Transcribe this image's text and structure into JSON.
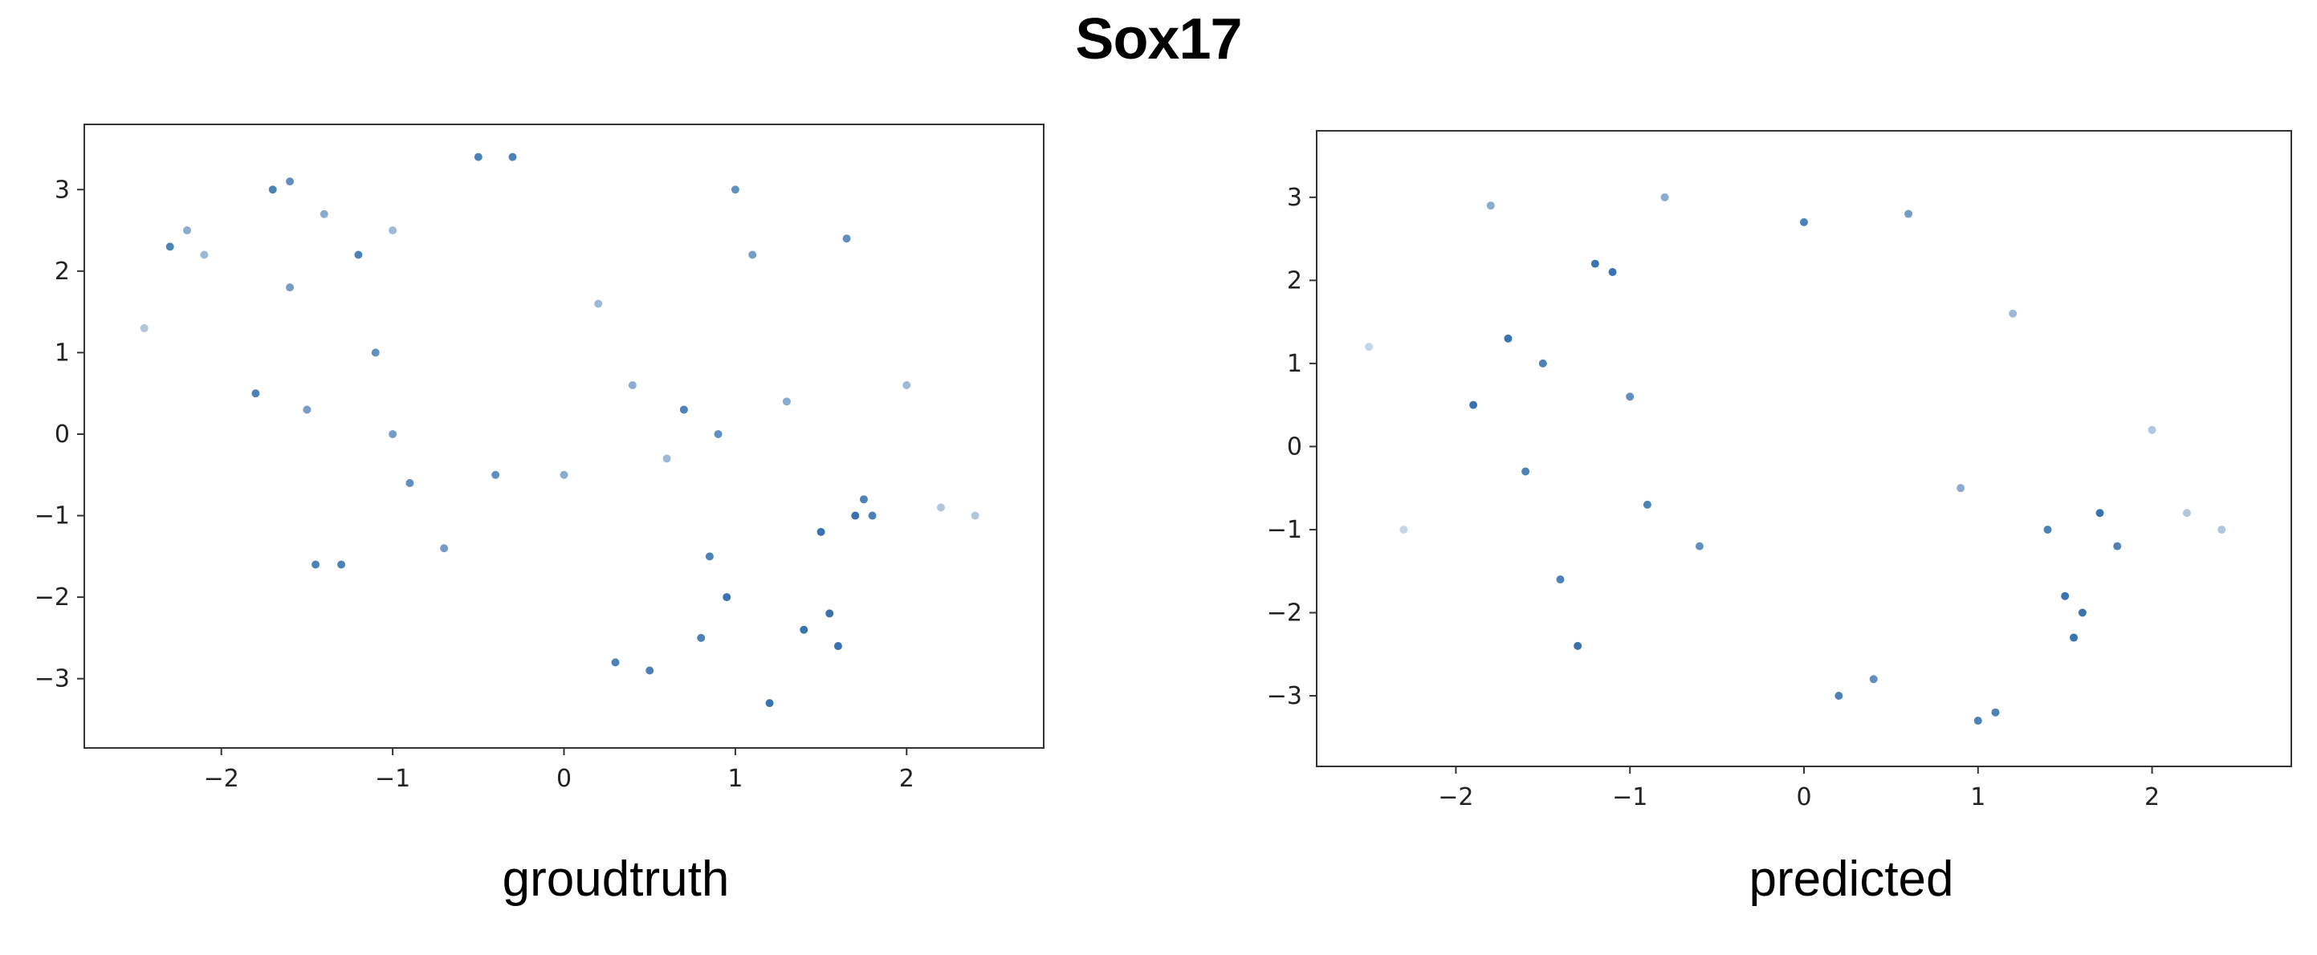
{
  "figure": {
    "title": "Sox17",
    "point_color": "#3a74b0"
  },
  "chart_data": [
    {
      "type": "scatter",
      "title": "groudtruth",
      "xlabel": "",
      "ylabel": "",
      "xlim": [
        -2.8,
        2.8
      ],
      "ylim": [
        -3.85,
        3.8
      ],
      "xticks": [
        -2,
        -1,
        0,
        1,
        2
      ],
      "yticks": [
        -3,
        -2,
        -1,
        0,
        1,
        2,
        3
      ],
      "xtick_labels": [
        "−2",
        "−1",
        "0",
        "1",
        "2"
      ],
      "ytick_labels": [
        "−3",
        "−2",
        "−1",
        "0",
        "1",
        "2",
        "3"
      ],
      "grid": false,
      "series": [
        {
          "x": [
            -2.45,
            -2.3,
            -2.2,
            -2.1,
            -1.8,
            -1.7,
            -1.6,
            -1.5,
            -1.45,
            -1.3,
            -1.2,
            -1.1,
            -1.0,
            -0.9,
            -0.5,
            -0.4,
            -0.3,
            0.0,
            0.3,
            0.5,
            0.7,
            0.8,
            0.85,
            0.9,
            0.95,
            1.0,
            1.1,
            1.2,
            1.3,
            1.4,
            1.5,
            1.55,
            1.6,
            1.65,
            1.7,
            1.75,
            1.8,
            2.0,
            2.2,
            2.4,
            0.2,
            0.4,
            0.6,
            -1.6,
            -1.4,
            -1.0,
            -0.7
          ],
          "y": [
            1.3,
            2.3,
            2.5,
            2.2,
            0.5,
            3.0,
            3.1,
            0.3,
            -1.6,
            -1.6,
            2.2,
            1.0,
            0.0,
            -0.6,
            3.4,
            -0.5,
            3.4,
            -0.5,
            -2.8,
            -2.9,
            0.3,
            -2.5,
            -1.5,
            0.0,
            -2.0,
            3.0,
            2.2,
            -3.3,
            0.4,
            -2.4,
            -1.2,
            -2.2,
            -2.6,
            2.4,
            -1.0,
            -0.8,
            -1.0,
            0.6,
            -0.9,
            -1.0,
            1.6,
            0.6,
            -0.3,
            1.8,
            2.7,
            2.5,
            -1.4
          ],
          "intensity": [
            0.4,
            0.9,
            0.6,
            0.5,
            0.9,
            0.9,
            0.8,
            0.7,
            0.9,
            0.9,
            0.9,
            0.8,
            0.7,
            0.8,
            0.9,
            0.8,
            0.9,
            0.6,
            0.9,
            0.9,
            0.9,
            0.9,
            0.9,
            0.8,
            1.0,
            0.8,
            0.7,
            1.0,
            0.6,
            1.0,
            1.0,
            1.0,
            1.0,
            0.8,
            1.0,
            0.9,
            0.9,
            0.5,
            0.4,
            0.4,
            0.5,
            0.6,
            0.5,
            0.7,
            0.6,
            0.5,
            0.7
          ]
        }
      ]
    },
    {
      "type": "scatter",
      "title": "predicted",
      "xlabel": "",
      "ylabel": "",
      "xlim": [
        -2.8,
        2.8
      ],
      "ylim": [
        -3.85,
        3.8
      ],
      "xticks": [
        -2,
        -1,
        0,
        1,
        2
      ],
      "yticks": [
        -3,
        -2,
        -1,
        0,
        1,
        2,
        3
      ],
      "xtick_labels": [
        "−2",
        "−1",
        "0",
        "1",
        "2"
      ],
      "ytick_labels": [
        "−3",
        "−2",
        "−1",
        "0",
        "1",
        "2",
        "3"
      ],
      "grid": false,
      "series": [
        {
          "x": [
            -2.5,
            -2.3,
            -1.9,
            -1.8,
            -1.7,
            -1.6,
            -1.5,
            -1.4,
            -1.3,
            -1.2,
            -1.1,
            -1.0,
            -0.9,
            -0.8,
            -0.6,
            0.0,
            0.2,
            0.4,
            0.6,
            0.9,
            1.0,
            1.1,
            1.2,
            1.4,
            1.5,
            1.55,
            1.6,
            1.7,
            1.8,
            2.0,
            2.2,
            2.4
          ],
          "y": [
            1.2,
            -1.0,
            0.5,
            2.9,
            1.3,
            -0.3,
            1.0,
            -1.6,
            -2.4,
            2.2,
            2.1,
            0.6,
            -0.7,
            3.0,
            -1.2,
            2.7,
            -3.0,
            -2.8,
            2.8,
            -0.5,
            -3.3,
            -3.2,
            1.6,
            -1.0,
            -1.8,
            -2.3,
            -2.0,
            -0.8,
            -1.2,
            0.2,
            -0.8,
            -1.0
          ],
          "intensity": [
            0.3,
            0.3,
            1.0,
            0.6,
            1.0,
            0.9,
            0.9,
            0.9,
            1.0,
            1.0,
            1.0,
            0.8,
            0.9,
            0.6,
            0.8,
            0.9,
            0.9,
            0.8,
            0.7,
            0.6,
            0.9,
            0.9,
            0.5,
            0.9,
            1.0,
            1.0,
            1.0,
            1.0,
            0.9,
            0.4,
            0.4,
            0.4
          ]
        }
      ]
    }
  ]
}
